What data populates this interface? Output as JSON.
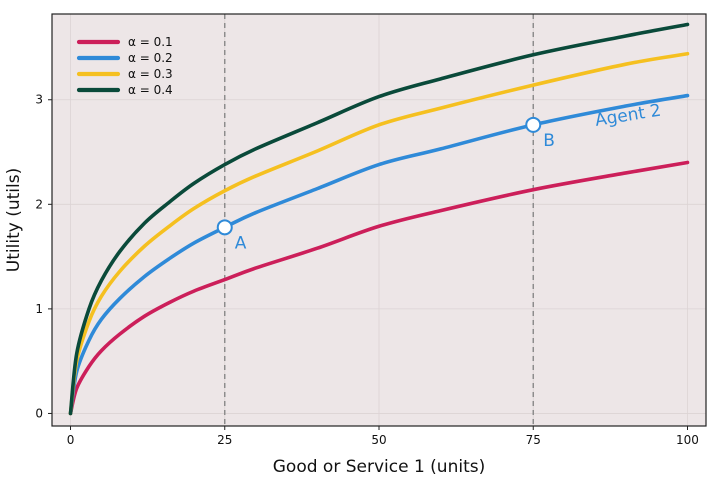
{
  "chart_data": {
    "type": "line",
    "xlabel": "Good or Service 1 (units)",
    "ylabel": "Utility (utils)",
    "xlim": [
      -3,
      103
    ],
    "ylim": [
      -0.12,
      3.82
    ],
    "xticks": [
      0,
      25,
      50,
      75,
      100
    ],
    "yticks": [
      0,
      1,
      2,
      3
    ],
    "grid": true,
    "legend_position": "top-left",
    "colors": {
      "background": "#ede6e7",
      "grid": "#dcd3d4",
      "vline": "#888888",
      "frame": "#222222"
    },
    "series": [
      {
        "name": "α = 0.1",
        "color": "#cc1f5a",
        "x": [
          0,
          1,
          3,
          5,
          8,
          12,
          16,
          20,
          25,
          30,
          40,
          50,
          60,
          75,
          90,
          100
        ],
        "values": [
          0,
          0.24,
          0.45,
          0.6,
          0.76,
          0.93,
          1.06,
          1.17,
          1.28,
          1.39,
          1.58,
          1.79,
          1.94,
          2.14,
          2.3,
          2.4
        ]
      },
      {
        "name": "α = 0.2",
        "color": "#2f8ad8",
        "x": [
          0,
          1,
          3,
          5,
          8,
          12,
          16,
          20,
          25,
          30,
          40,
          50,
          60,
          75,
          90,
          100
        ],
        "values": [
          0,
          0.4,
          0.7,
          0.9,
          1.1,
          1.31,
          1.48,
          1.63,
          1.78,
          1.92,
          2.15,
          2.38,
          2.53,
          2.76,
          2.94,
          3.04
        ]
      },
      {
        "name": "α = 0.3",
        "color": "#f5c020",
        "x": [
          0,
          1,
          3,
          5,
          8,
          12,
          16,
          20,
          25,
          30,
          40,
          50,
          60,
          75,
          90,
          100
        ],
        "values": [
          0,
          0.5,
          0.88,
          1.12,
          1.36,
          1.6,
          1.79,
          1.96,
          2.13,
          2.27,
          2.51,
          2.76,
          2.92,
          3.14,
          3.34,
          3.44
        ]
      },
      {
        "name": "α = 0.4",
        "color": "#0a4a3a",
        "x": [
          0,
          1,
          3,
          5,
          8,
          12,
          16,
          20,
          25,
          30,
          40,
          50,
          60,
          75,
          90,
          100
        ],
        "values": [
          0,
          0.57,
          1.0,
          1.27,
          1.55,
          1.82,
          2.02,
          2.2,
          2.38,
          2.53,
          2.78,
          3.03,
          3.2,
          3.43,
          3.61,
          3.72
        ]
      }
    ],
    "vlines": [
      25,
      75
    ],
    "points": [
      {
        "label": "A",
        "x": 25,
        "y": 1.78
      },
      {
        "label": "B",
        "x": 75,
        "y": 2.76
      }
    ],
    "annotation": {
      "text": "Agent 2",
      "x": 90.5,
      "y": 2.8
    }
  }
}
